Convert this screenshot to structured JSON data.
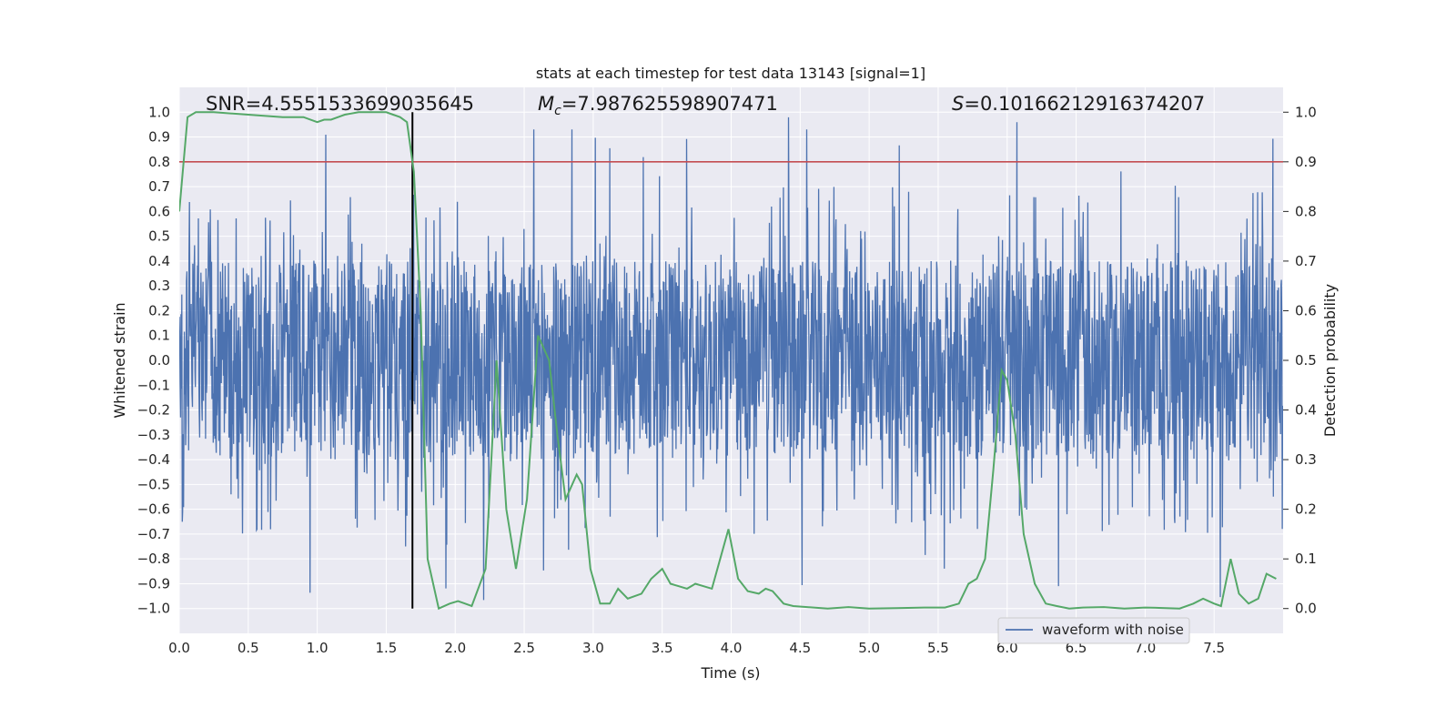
{
  "chart_data": {
    "type": "line",
    "title": "stats at each timestep for test data 13143 [signal=1]",
    "xlabel": "Time (s)",
    "ylabel_left": "Whitened strain",
    "ylabel_right": "Detection probability",
    "xlim": [
      0.0,
      8.0
    ],
    "ylim_left": [
      -1.1,
      1.1
    ],
    "ylim_right": [
      -0.05,
      1.05
    ],
    "x_ticks": [
      "0.0",
      "0.5",
      "1.0",
      "1.5",
      "2.0",
      "2.5",
      "3.0",
      "3.5",
      "4.0",
      "4.5",
      "5.0",
      "5.5",
      "6.0",
      "6.5",
      "7.0",
      "7.5"
    ],
    "y_left_ticks": [
      "1.0",
      "0.9",
      "0.8",
      "0.7",
      "0.6",
      "0.5",
      "0.4",
      "0.3",
      "0.2",
      "0.1",
      "0.0",
      "−0.1",
      "−0.2",
      "−0.3",
      "−0.4",
      "−0.5",
      "−0.6",
      "−0.7",
      "−0.8",
      "−0.9",
      "−1.0"
    ],
    "y_right_ticks": [
      "0.0",
      "0.1",
      "0.2",
      "0.3",
      "0.4",
      "0.5",
      "0.6",
      "0.7",
      "0.8",
      "0.9",
      "1.0"
    ],
    "grid": true,
    "annotations": {
      "snr": "SNR=4.5551533699035645",
      "mc_symbol": "M",
      "mc_sub": "c",
      "mc_value": "=7.987625598907471",
      "s_symbol": "S",
      "s_value": "=0.10166212916374207"
    },
    "threshold_y_right": 0.9,
    "marker_time": 1.69,
    "series": [
      {
        "name": "waveform with noise",
        "axis": "left",
        "color": "#4c72b0",
        "description": "dense noisy whitened strain, mostly within ±0.4, spikes to ~±1.0"
      },
      {
        "axis": "right",
        "color": "#55a868",
        "x": [
          0.0,
          0.06,
          0.12,
          0.25,
          0.5,
          0.75,
          0.9,
          1.0,
          1.05,
          1.1,
          1.2,
          1.3,
          1.4,
          1.5,
          1.55,
          1.6,
          1.65,
          1.7,
          1.75,
          1.8,
          1.88,
          1.96,
          2.02,
          2.12,
          2.22,
          2.3,
          2.37,
          2.44,
          2.52,
          2.6,
          2.68,
          2.74,
          2.8,
          2.88,
          2.92,
          2.98,
          3.05,
          3.12,
          3.18,
          3.25,
          3.35,
          3.42,
          3.5,
          3.56,
          3.62,
          3.68,
          3.74,
          3.8,
          3.86,
          3.92,
          3.98,
          4.05,
          4.12,
          4.2,
          4.25,
          4.3,
          4.38,
          4.45,
          4.55,
          4.7,
          4.85,
          5.0,
          5.2,
          5.4,
          5.55,
          5.65,
          5.72,
          5.78,
          5.84,
          5.9,
          5.96,
          6.0,
          6.06,
          6.12,
          6.2,
          6.28,
          6.36,
          6.45,
          6.55,
          6.7,
          6.85,
          7.0,
          7.15,
          7.25,
          7.35,
          7.42,
          7.5,
          7.55,
          7.62,
          7.68,
          7.75,
          7.82,
          7.88,
          7.95
        ],
        "y": [
          0.8,
          0.99,
          1.0,
          1.0,
          0.995,
          0.99,
          0.99,
          0.98,
          0.985,
          0.985,
          0.995,
          1.0,
          1.0,
          1.0,
          0.995,
          0.99,
          0.98,
          0.88,
          0.6,
          0.1,
          0.0,
          0.01,
          0.015,
          0.005,
          0.08,
          0.5,
          0.2,
          0.08,
          0.22,
          0.55,
          0.5,
          0.35,
          0.22,
          0.27,
          0.25,
          0.08,
          0.01,
          0.01,
          0.04,
          0.02,
          0.03,
          0.06,
          0.08,
          0.05,
          0.045,
          0.04,
          0.05,
          0.045,
          0.04,
          0.1,
          0.16,
          0.06,
          0.035,
          0.03,
          0.04,
          0.035,
          0.01,
          0.005,
          0.003,
          0.0,
          0.003,
          0.0,
          0.001,
          0.002,
          0.002,
          0.01,
          0.05,
          0.06,
          0.1,
          0.28,
          0.48,
          0.46,
          0.35,
          0.15,
          0.05,
          0.01,
          0.005,
          0.0,
          0.002,
          0.003,
          0.0,
          0.002,
          0.001,
          0.0,
          0.01,
          0.02,
          0.01,
          0.005,
          0.1,
          0.03,
          0.01,
          0.02,
          0.07,
          0.06
        ]
      }
    ],
    "legend": {
      "placement": "lower-right",
      "label": "waveform with noise"
    }
  }
}
